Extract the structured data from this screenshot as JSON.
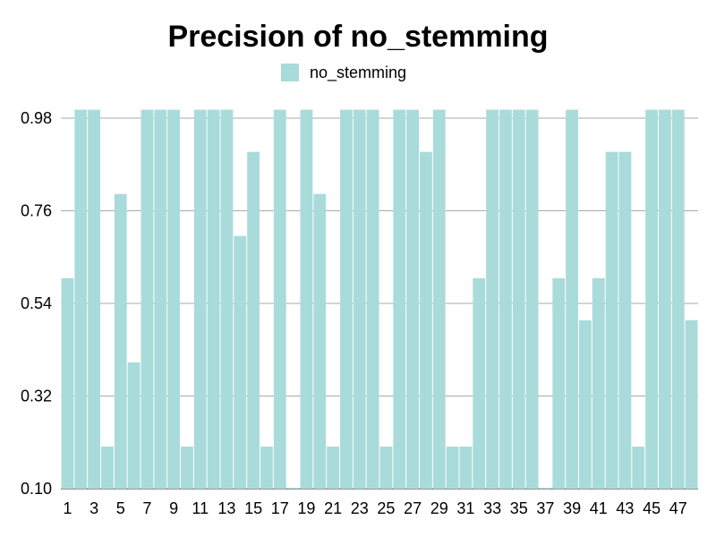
{
  "chart_data": {
    "type": "bar",
    "title": "Precision of no_stemming",
    "xlabel": "",
    "ylabel": "",
    "legend": {
      "position": "top-center"
    },
    "grid": true,
    "ylim": [
      0.1,
      1.0
    ],
    "yticks": [
      "0.10",
      "0.32",
      "0.54",
      "0.76",
      "0.98"
    ],
    "categories": [
      1,
      2,
      3,
      4,
      5,
      6,
      7,
      8,
      9,
      10,
      11,
      12,
      13,
      14,
      15,
      16,
      17,
      18,
      19,
      20,
      21,
      22,
      23,
      24,
      25,
      26,
      27,
      28,
      29,
      30,
      31,
      32,
      33,
      34,
      35,
      36,
      37,
      38,
      39,
      40,
      41,
      42,
      43,
      44,
      45,
      46,
      47,
      48
    ],
    "xtick_labels": [
      "1",
      "3",
      "5",
      "7",
      "9",
      "11",
      "13",
      "15",
      "17",
      "19",
      "21",
      "23",
      "25",
      "27",
      "29",
      "31",
      "33",
      "35",
      "37",
      "39",
      "41",
      "43",
      "45",
      "47"
    ],
    "series": [
      {
        "name": "no_stemming",
        "color": "#aadbdb",
        "values": [
          0.6,
          1.0,
          1.0,
          0.2,
          0.8,
          0.4,
          1.0,
          1.0,
          1.0,
          0.2,
          1.0,
          1.0,
          1.0,
          0.7,
          0.9,
          0.2,
          1.0,
          0.1,
          1.0,
          0.8,
          0.2,
          1.0,
          1.0,
          1.0,
          0.2,
          1.0,
          1.0,
          0.9,
          1.0,
          0.2,
          0.2,
          0.6,
          1.0,
          1.0,
          1.0,
          1.0,
          0.1,
          0.6,
          1.0,
          0.5,
          0.6,
          0.9,
          0.9,
          0.2,
          1.0,
          1.0,
          1.0,
          0.5
        ]
      }
    ]
  }
}
